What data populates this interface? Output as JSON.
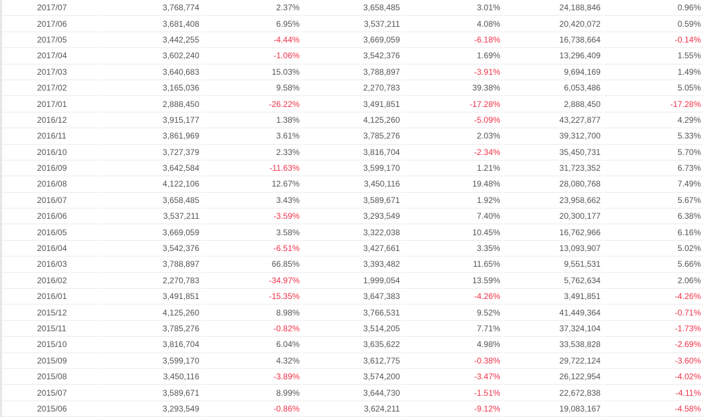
{
  "colors": {
    "text": "#555555",
    "negative": "#f0324a"
  },
  "rows": [
    [
      "2017/07",
      "3,768,774",
      "2.37%",
      "3,658,485",
      "3.01%",
      "24,188,846",
      "0.96%"
    ],
    [
      "2017/06",
      "3,681,408",
      "6.95%",
      "3,537,211",
      "4.08%",
      "20,420,072",
      "0.59%"
    ],
    [
      "2017/05",
      "3,442,255",
      "-4.44%",
      "3,669,059",
      "-6.18%",
      "16,738,664",
      "-0.14%"
    ],
    [
      "2017/04",
      "3,602,240",
      "-1.06%",
      "3,542,376",
      "1.69%",
      "13,296,409",
      "1.55%"
    ],
    [
      "2017/03",
      "3,640,683",
      "15.03%",
      "3,788,897",
      "-3.91%",
      "9,694,169",
      "1.49%"
    ],
    [
      "2017/02",
      "3,165,036",
      "9.58%",
      "2,270,783",
      "39.38%",
      "6,053,486",
      "5.05%"
    ],
    [
      "2017/01",
      "2,888,450",
      "-26.22%",
      "3,491,851",
      "-17.28%",
      "2,888,450",
      "-17.28%"
    ],
    [
      "2016/12",
      "3,915,177",
      "1.38%",
      "4,125,260",
      "-5.09%",
      "43,227,877",
      "4.29%"
    ],
    [
      "2016/11",
      "3,861,969",
      "3.61%",
      "3,785,276",
      "2.03%",
      "39,312,700",
      "5.33%"
    ],
    [
      "2016/10",
      "3,727,379",
      "2.33%",
      "3,816,704",
      "-2.34%",
      "35,450,731",
      "5.70%"
    ],
    [
      "2016/09",
      "3,642,584",
      "-11.63%",
      "3,599,170",
      "1.21%",
      "31,723,352",
      "6.73%"
    ],
    [
      "2016/08",
      "4,122,106",
      "12.67%",
      "3,450,116",
      "19.48%",
      "28,080,768",
      "7.49%"
    ],
    [
      "2016/07",
      "3,658,485",
      "3.43%",
      "3,589,671",
      "1.92%",
      "23,958,662",
      "5.67%"
    ],
    [
      "2016/06",
      "3,537,211",
      "-3.59%",
      "3,293,549",
      "7.40%",
      "20,300,177",
      "6.38%"
    ],
    [
      "2016/05",
      "3,669,059",
      "3.58%",
      "3,322,038",
      "10.45%",
      "16,762,966",
      "6.16%"
    ],
    [
      "2016/04",
      "3,542,376",
      "-6.51%",
      "3,427,661",
      "3.35%",
      "13,093,907",
      "5.02%"
    ],
    [
      "2016/03",
      "3,788,897",
      "66.85%",
      "3,393,482",
      "11.65%",
      "9,551,531",
      "5.66%"
    ],
    [
      "2016/02",
      "2,270,783",
      "-34.97%",
      "1,999,054",
      "13.59%",
      "5,762,634",
      "2.06%"
    ],
    [
      "2016/01",
      "3,491,851",
      "-15.35%",
      "3,647,383",
      "-4.26%",
      "3,491,851",
      "-4.26%"
    ],
    [
      "2015/12",
      "4,125,260",
      "8.98%",
      "3,766,531",
      "9.52%",
      "41,449,364",
      "-0.71%"
    ],
    [
      "2015/11",
      "3,785,276",
      "-0.82%",
      "3,514,205",
      "7.71%",
      "37,324,104",
      "-1.73%"
    ],
    [
      "2015/10",
      "3,816,704",
      "6.04%",
      "3,635,622",
      "4.98%",
      "33,538,828",
      "-2.69%"
    ],
    [
      "2015/09",
      "3,599,170",
      "4.32%",
      "3,612,775",
      "-0.38%",
      "29,722,124",
      "-3.60%"
    ],
    [
      "2015/08",
      "3,450,116",
      "-3.89%",
      "3,574,200",
      "-3.47%",
      "26,122,954",
      "-4.02%"
    ],
    [
      "2015/07",
      "3,589,671",
      "8.99%",
      "3,644,730",
      "-1.51%",
      "22,672,838",
      "-4.11%"
    ],
    [
      "2015/06",
      "3,293,549",
      "-0.86%",
      "3,624,211",
      "-9.12%",
      "19,083,167",
      "-4.58%"
    ]
  ]
}
